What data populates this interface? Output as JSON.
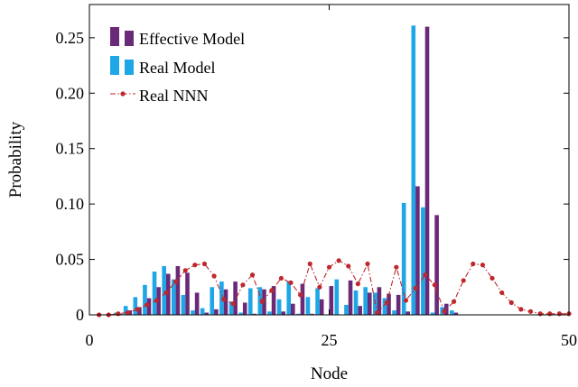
{
  "chart_data": {
    "type": "bar",
    "xlabel": "Node",
    "ylabel": "Probability",
    "xlim": [
      0,
      50
    ],
    "ylim": [
      0,
      0.28
    ],
    "xticks": [
      {
        "value": 0,
        "label": "0"
      },
      {
        "value": 25,
        "label": "25"
      },
      {
        "value": 50,
        "label": "50"
      }
    ],
    "yticks": [
      {
        "value": 0,
        "label": "0"
      },
      {
        "value": 0.05,
        "label": "0.05"
      },
      {
        "value": 0.1,
        "label": "0.10"
      },
      {
        "value": 0.15,
        "label": "0.15"
      },
      {
        "value": 0.2,
        "label": "0.20"
      },
      {
        "value": 0.25,
        "label": "0.25"
      }
    ],
    "legend_position": "top-left",
    "grid": false,
    "series": [
      {
        "name": "Effective Model",
        "kind": "bar",
        "color": "#6b2a78",
        "x": [
          1,
          2,
          3,
          4,
          5,
          6,
          7,
          8,
          9,
          10,
          11,
          12,
          13,
          14,
          15,
          16,
          17,
          18,
          19,
          20,
          21,
          22,
          23,
          24,
          25,
          26,
          27,
          28,
          29,
          30,
          31,
          32,
          33,
          34,
          35,
          36,
          37,
          38
        ],
        "values": [
          0,
          0,
          0.001,
          0.004,
          0.007,
          0.015,
          0.025,
          0.037,
          0.044,
          0.038,
          0.02,
          0.002,
          0.005,
          0.023,
          0.03,
          0.011,
          0.001,
          0.023,
          0.026,
          0.003,
          0.01,
          0.028,
          0.001,
          0.014,
          0.026,
          0,
          0.031,
          0.008,
          0.02,
          0.025,
          0.019,
          0.018,
          0.003,
          0.116,
          0.26,
          0.09,
          0.01,
          0.002
        ]
      },
      {
        "name": "Real Model",
        "kind": "bar",
        "color": "#1ea6e6",
        "x": [
          1,
          2,
          3,
          4,
          5,
          6,
          7,
          8,
          9,
          10,
          11,
          12,
          13,
          14,
          15,
          16,
          17,
          18,
          19,
          20,
          21,
          22,
          23,
          24,
          25,
          26,
          27,
          28,
          29,
          30,
          31,
          32,
          33,
          34,
          35,
          36,
          37,
          38
        ],
        "values": [
          0,
          0,
          0.002,
          0.008,
          0.016,
          0.027,
          0.039,
          0.044,
          0.032,
          0.018,
          0.004,
          0.006,
          0.025,
          0.03,
          0.012,
          0.002,
          0.024,
          0.025,
          0.003,
          0.014,
          0.03,
          0.001,
          0.016,
          0.024,
          0,
          0.032,
          0.009,
          0.022,
          0.025,
          0.02,
          0.015,
          0.004,
          0.101,
          0.261,
          0.097,
          0.002,
          0.007,
          0.004
        ]
      },
      {
        "name": "Real NNN",
        "kind": "line",
        "color": "#c0272d",
        "x": [
          1,
          2,
          3,
          4,
          5,
          6,
          7,
          8,
          9,
          10,
          11,
          12,
          13,
          14,
          15,
          16,
          17,
          18,
          19,
          20,
          21,
          22,
          23,
          24,
          25,
          26,
          27,
          28,
          29,
          30,
          31,
          32,
          33,
          34,
          35,
          36,
          37,
          38,
          39,
          40,
          41,
          42,
          43,
          44,
          45,
          46,
          47,
          48,
          49,
          50
        ],
        "values": [
          0,
          0,
          0.001,
          0.002,
          0.005,
          0.009,
          0.013,
          0.02,
          0.03,
          0.04,
          0.045,
          0.046,
          0.035,
          0.014,
          0.01,
          0.027,
          0.036,
          0.012,
          0.022,
          0.033,
          0.029,
          0.018,
          0.046,
          0.025,
          0.043,
          0.049,
          0.044,
          0.028,
          0.046,
          0.002,
          0.011,
          0.043,
          0.013,
          0.024,
          0.036,
          0.027,
          0.003,
          0.012,
          0.031,
          0.046,
          0.045,
          0.033,
          0.02,
          0.011,
          0.005,
          0.003,
          0.001,
          0.001,
          0.001,
          0.001
        ]
      }
    ]
  }
}
